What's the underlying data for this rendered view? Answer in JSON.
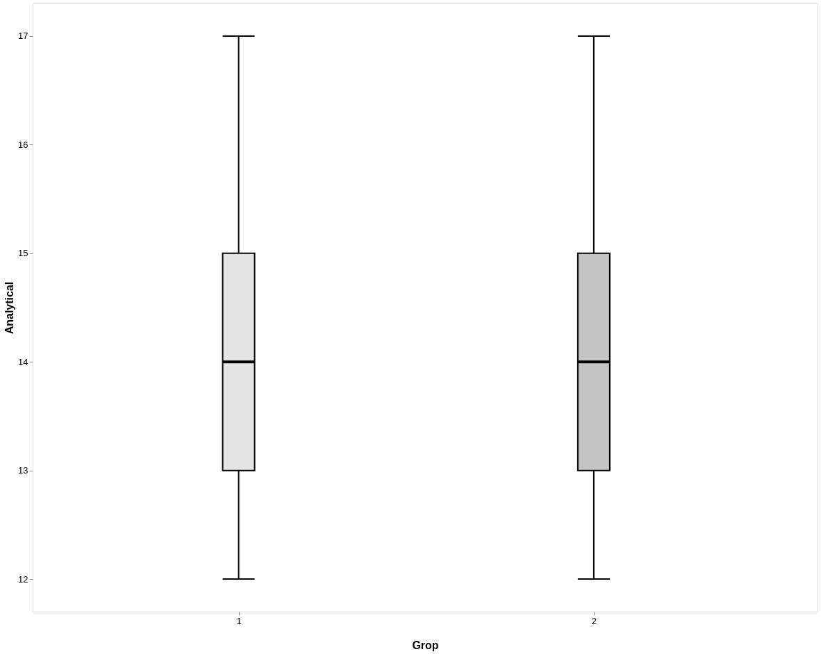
{
  "chart_data": {
    "type": "box",
    "xlabel": "Grop",
    "ylabel": "Analytical",
    "categories": [
      "1",
      "2"
    ],
    "boxes": [
      {
        "low": 12,
        "q1": 13,
        "median": 14,
        "q3": 15,
        "high": 17
      },
      {
        "low": 12,
        "q1": 13,
        "median": 14,
        "q3": 15,
        "high": 17
      }
    ],
    "colors": [
      "#e4e4e4",
      "#c4c4c4"
    ],
    "ylim": [
      11.7,
      17.3
    ],
    "yticks": [
      12,
      13,
      14,
      15,
      16,
      17
    ],
    "grid": false
  }
}
